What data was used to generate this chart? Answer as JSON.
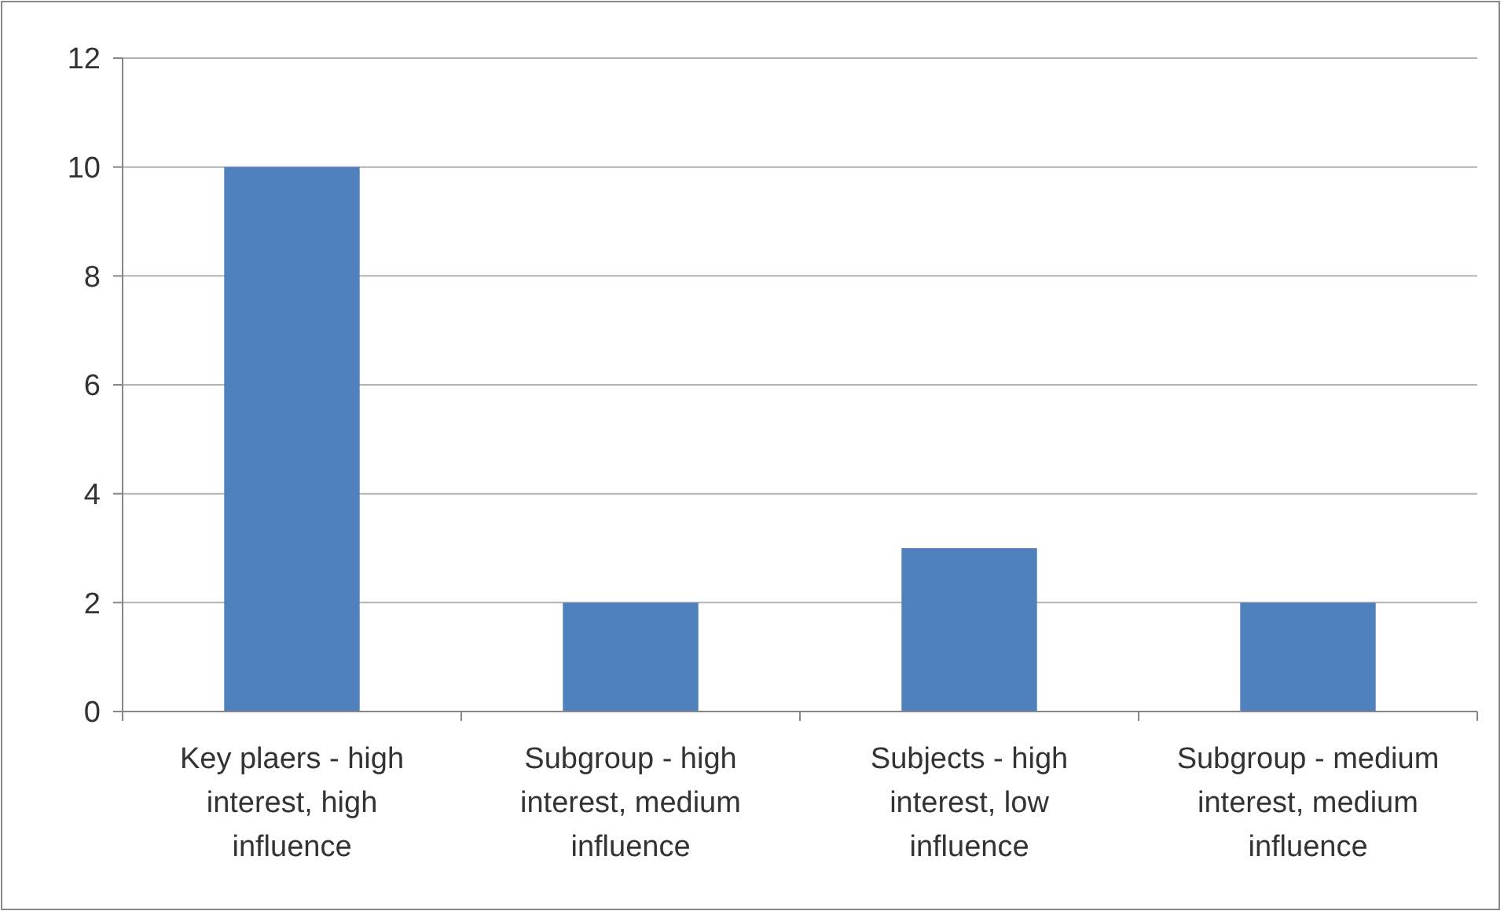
{
  "chart_data": {
    "type": "bar",
    "categories": [
      "Key plaers - high interest, high influence",
      "Subgroup - high interest, medium influence",
      "Subjects - high interest, low influence",
      "Subgroup - medium interest, medium influence"
    ],
    "values": [
      10,
      2,
      3,
      2
    ],
    "color": "#4f81bd",
    "ylim": [
      0,
      12
    ],
    "yticks": [
      0,
      2,
      4,
      6,
      8,
      10,
      12
    ],
    "grid": "y"
  }
}
